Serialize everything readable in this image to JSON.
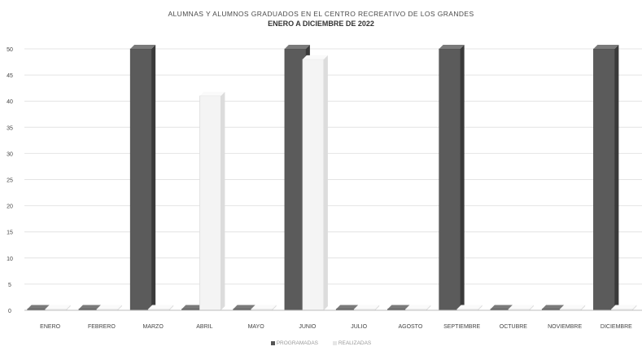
{
  "chart_data": {
    "type": "bar",
    "title": "ALUMNAS Y ALUMNOS GRADUADOS EN EL CENTRO RECREATIVO DE LOS GRANDES",
    "subtitle": "ENERO A DICIEMBRE DE 2022",
    "xlabel": "",
    "ylabel": "",
    "ylim": [
      0,
      50
    ],
    "yticks": [
      0,
      5,
      10,
      15,
      20,
      25,
      30,
      35,
      40,
      45,
      50
    ],
    "grid": true,
    "legend_position": "bottom",
    "categories": [
      "ENERO",
      "FEBRERO",
      "MARZO",
      "ABRIL",
      "MAYO",
      "JUNIO",
      "JULIO",
      "AGOSTO",
      "SEPTIEMBRE",
      "OCTUBRE",
      "NOVIEMBRE",
      "DICIEMBRE"
    ],
    "series": [
      {
        "name": "PROGRAMADAS",
        "color": "#555555",
        "values": [
          0,
          0,
          50,
          0,
          0,
          50,
          0,
          0,
          50,
          0,
          0,
          50
        ]
      },
      {
        "name": "REALIZADAS",
        "color": "#f2f2f2",
        "values": [
          0,
          0,
          0,
          41,
          0,
          48,
          0,
          0,
          0,
          0,
          0,
          0
        ]
      }
    ]
  }
}
